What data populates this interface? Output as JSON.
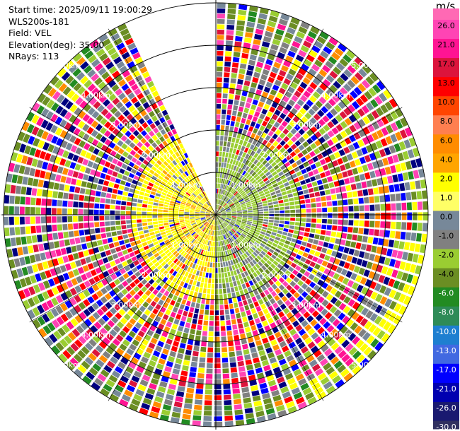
{
  "header": {
    "start_time_label": "Start time: 2025/09/11 19:00:29",
    "station": "WLS200s-181",
    "field_label": "Field: VEL",
    "elevation_label": "Elevation(deg): 35.00",
    "nrays_label": "NRays: 113"
  },
  "chart_data": {
    "type": "ppi_polar_scan",
    "field": "VEL",
    "units": "m/s",
    "elevation_deg": 35.0,
    "n_rays": 113,
    "range_rings_km": [
      1.0,
      2.0,
      3.0,
      4.0,
      5.0
    ],
    "max_range_km": 5.0,
    "missing_sector_deg": [
      335,
      360
    ],
    "ring_labels": [
      {
        "km": 1.0,
        "text": "1.00km",
        "az_deg": [
          45,
          135,
          225,
          315
        ]
      },
      {
        "km": 2.0,
        "text": "2.00km",
        "az_deg": [
          45,
          135,
          225,
          315
        ]
      },
      {
        "km": 3.0,
        "text": "3.00km",
        "az_deg": [
          45,
          135,
          225,
          315
        ]
      },
      {
        "km": 4.0,
        "text": "4.00km",
        "az_deg": [
          45,
          135,
          225,
          315
        ]
      },
      {
        "km": 5.0,
        "text": "5.00km",
        "az_deg": [
          45,
          135,
          225,
          315
        ]
      }
    ],
    "colorbar": {
      "unit_label": "m/s",
      "ticks": [
        "26.0",
        "21.0",
        "17.0",
        "13.0",
        "10.0",
        "8.0",
        "6.0",
        "4.0",
        "2.0",
        "1.0",
        "0.0",
        "-1.0",
        "-2.0",
        "-4.0",
        "-6.0",
        "-8.0",
        "-10.0",
        "-13.0",
        "-17.0",
        "-21.0",
        "-26.0",
        "-30.0"
      ],
      "colors": [
        "#ff44b4",
        "#ff1493",
        "#dc143c",
        "#ff0000",
        "#ff4500",
        "#ff7f50",
        "#ff8c00",
        "#ffa500",
        "#ffff00",
        "#ffff66",
        "#778899",
        "#808080",
        "#9acd32",
        "#6b8e23",
        "#228b22",
        "#2e8b57",
        "#1e7fd0",
        "#4169e1",
        "#0000ff",
        "#0000b0",
        "#191970",
        "#303060"
      ]
    },
    "velocity_pattern": {
      "inner_near_km": 2.0,
      "inner_positive_side": "west",
      "inner_positive_colors": [
        "#ffff00",
        "#ffd700",
        "#ffa500",
        "#778899"
      ],
      "inner_negative_colors": [
        "#9acd32",
        "#808080",
        "#6b8e23",
        "#778899"
      ],
      "outer_palette": [
        "#ff1493",
        "#ff44b4",
        "#0000ff",
        "#000080",
        "#ffff00",
        "#ff0000",
        "#dc143c",
        "#9acd32",
        "#6b8e23",
        "#778899",
        "#ff8c00",
        "#808080"
      ],
      "outer_edge_palette": [
        "#6b8e23",
        "#228b22",
        "#9acd32",
        "#6b8e23",
        "#778899"
      ]
    }
  }
}
